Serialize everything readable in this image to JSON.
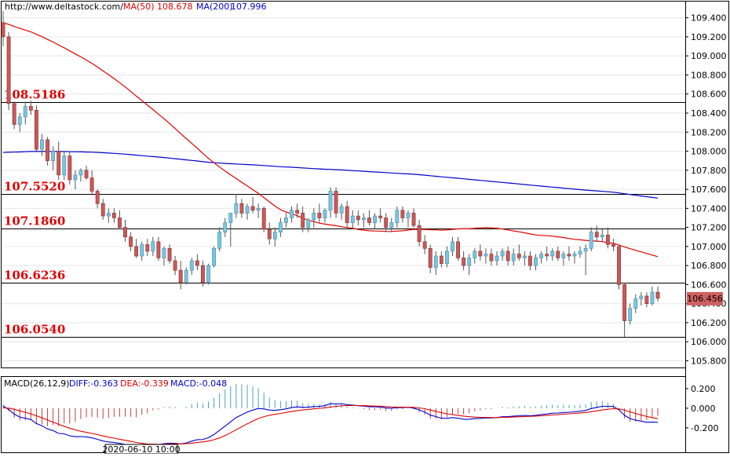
{
  "colors": {
    "ma50": "#e00000",
    "ma200": "#0000cc",
    "bull": "#7ec4dc",
    "bear": "#c85a5a",
    "level": "#e00000",
    "price_tag": "#d06060"
  },
  "header": {
    "site": "http://www.deltastock.com/",
    "ma50_label": "MA(50)",
    "ma50_value": "108.678",
    "ma200_label": "MA(200)",
    "ma200_value": "107.996"
  },
  "chart_data": [
    {
      "type": "candlestick",
      "yticks": [
        "109.400",
        "109.200",
        "109.000",
        "108.800",
        "108.600",
        "108.400",
        "108.200",
        "108.000",
        "107.800",
        "107.600",
        "107.400",
        "107.200",
        "107.000",
        "106.800",
        "106.600",
        "106.400",
        "106.200",
        "106.000",
        "105.800"
      ],
      "ylim": [
        105.73,
        109.57
      ],
      "levels": [
        {
          "label": "108.5186",
          "value": 108.5186
        },
        {
          "label": "107.5520",
          "value": 107.552
        },
        {
          "label": "107.1860",
          "value": 107.186
        },
        {
          "label": "106.6236",
          "value": 106.6236
        },
        {
          "label": "106.0540",
          "value": 106.054
        }
      ],
      "current_price": {
        "label": "106.456",
        "value": 106.456
      },
      "candles": [
        [
          109.35,
          109.47,
          109.1,
          109.2
        ],
        [
          109.2,
          109.25,
          108.43,
          108.5
        ],
        [
          108.5,
          108.52,
          108.23,
          108.28
        ],
        [
          108.28,
          108.4,
          108.2,
          108.36
        ],
        [
          108.36,
          108.52,
          108.28,
          108.47
        ],
        [
          108.47,
          108.53,
          108.38,
          108.43
        ],
        [
          108.43,
          108.48,
          108.0,
          108.02
        ],
        [
          108.02,
          108.18,
          107.95,
          108.12
        ],
        [
          108.12,
          108.15,
          107.85,
          107.9
        ],
        [
          107.9,
          108.05,
          107.8,
          108.0
        ],
        [
          108.0,
          108.1,
          107.7,
          107.75
        ],
        [
          107.75,
          108.0,
          107.7,
          107.95
        ],
        [
          107.95,
          108.0,
          107.65,
          107.7
        ],
        [
          107.7,
          107.8,
          107.6,
          107.75
        ],
        [
          107.75,
          107.82,
          107.68,
          107.8
        ],
        [
          107.8,
          107.85,
          107.7,
          107.72
        ],
        [
          107.72,
          107.8,
          107.55,
          107.58
        ],
        [
          107.58,
          107.6,
          107.4,
          107.45
        ],
        [
          107.45,
          107.5,
          107.28,
          107.32
        ],
        [
          107.32,
          107.4,
          107.25,
          107.35
        ],
        [
          107.35,
          107.4,
          107.25,
          107.3
        ],
        [
          107.3,
          107.38,
          107.18,
          107.2
        ],
        [
          107.2,
          107.28,
          107.05,
          107.1
        ],
        [
          107.1,
          107.15,
          106.95,
          107.0
        ],
        [
          107.0,
          107.08,
          106.88,
          106.9
        ],
        [
          106.9,
          107.05,
          106.85,
          107.02
        ],
        [
          107.02,
          107.08,
          106.9,
          106.95
        ],
        [
          106.95,
          107.1,
          106.9,
          107.05
        ],
        [
          107.05,
          107.1,
          106.85,
          106.88
        ],
        [
          106.88,
          107.0,
          106.8,
          106.98
        ],
        [
          106.98,
          107.02,
          106.82,
          106.85
        ],
        [
          106.85,
          106.9,
          106.7,
          106.75
        ],
        [
          106.75,
          106.85,
          106.55,
          106.62
        ],
        [
          106.62,
          106.78,
          106.6,
          106.75
        ],
        [
          106.75,
          106.88,
          106.7,
          106.85
        ],
        [
          106.85,
          106.92,
          106.75,
          106.8
        ],
        [
          106.8,
          106.85,
          106.58,
          106.62
        ],
        [
          106.62,
          106.82,
          106.6,
          106.8
        ],
        [
          106.8,
          107.0,
          106.78,
          106.98
        ],
        [
          106.98,
          107.2,
          106.95,
          107.15
        ],
        [
          107.15,
          107.3,
          107.1,
          107.25
        ],
        [
          107.25,
          107.35,
          107.0,
          107.35
        ],
        [
          107.35,
          107.55,
          107.3,
          107.45
        ],
        [
          107.45,
          107.5,
          107.3,
          107.35
        ],
        [
          107.35,
          107.45,
          107.28,
          107.42
        ],
        [
          107.42,
          107.52,
          107.35,
          107.38
        ],
        [
          107.38,
          107.45,
          107.3,
          107.4
        ],
        [
          107.4,
          107.42,
          107.15,
          107.18
        ],
        [
          107.18,
          107.25,
          107.02,
          107.08
        ],
        [
          107.08,
          107.2,
          107.0,
          107.15
        ],
        [
          107.15,
          107.3,
          107.1,
          107.25
        ],
        [
          107.25,
          107.35,
          107.2,
          107.3
        ],
        [
          107.3,
          107.42,
          107.25,
          107.38
        ],
        [
          107.38,
          107.45,
          107.3,
          107.35
        ],
        [
          107.35,
          107.42,
          107.15,
          107.2
        ],
        [
          107.2,
          107.3,
          107.15,
          107.28
        ],
        [
          107.28,
          107.4,
          107.2,
          107.35
        ],
        [
          107.35,
          107.45,
          107.25,
          107.3
        ],
        [
          107.3,
          107.4,
          107.25,
          107.38
        ],
        [
          107.38,
          107.62,
          107.3,
          107.58
        ],
        [
          107.58,
          107.62,
          107.3,
          107.35
        ],
        [
          107.35,
          107.45,
          107.28,
          107.42
        ],
        [
          107.42,
          107.48,
          107.2,
          107.25
        ],
        [
          107.25,
          107.38,
          107.18,
          107.32
        ],
        [
          107.32,
          107.38,
          107.22,
          107.28
        ],
        [
          107.28,
          107.35,
          107.2,
          107.3
        ],
        [
          107.3,
          107.38,
          107.22,
          107.25
        ],
        [
          107.25,
          107.35,
          107.18,
          107.32
        ],
        [
          107.32,
          107.4,
          107.25,
          107.3
        ],
        [
          107.3,
          107.35,
          107.15,
          107.2
        ],
        [
          107.2,
          107.3,
          107.15,
          107.25
        ],
        [
          107.25,
          107.42,
          107.2,
          107.38
        ],
        [
          107.38,
          107.42,
          107.25,
          107.3
        ],
        [
          107.3,
          107.38,
          107.2,
          107.35
        ],
        [
          107.35,
          107.4,
          107.2,
          107.22
        ],
        [
          107.22,
          107.28,
          107.0,
          107.05
        ],
        [
          107.05,
          107.12,
          106.92,
          106.98
        ],
        [
          106.98,
          107.02,
          106.72,
          106.78
        ],
        [
          106.78,
          106.95,
          106.7,
          106.9
        ],
        [
          106.9,
          106.95,
          106.78,
          106.82
        ],
        [
          106.82,
          107.0,
          106.78,
          106.95
        ],
        [
          106.95,
          107.1,
          106.9,
          107.05
        ],
        [
          107.05,
          107.1,
          106.85,
          106.88
        ],
        [
          106.88,
          106.95,
          106.75,
          106.8
        ],
        [
          106.8,
          106.92,
          106.7,
          106.88
        ],
        [
          106.88,
          106.98,
          106.82,
          106.95
        ],
        [
          106.95,
          107.02,
          106.85,
          106.9
        ],
        [
          106.9,
          106.98,
          106.82,
          106.92
        ],
        [
          106.92,
          106.98,
          106.8,
          106.85
        ],
        [
          106.85,
          106.95,
          106.8,
          106.9
        ],
        [
          106.9,
          106.98,
          106.85,
          106.95
        ],
        [
          106.95,
          107.0,
          106.8,
          106.85
        ],
        [
          106.85,
          106.98,
          106.8,
          106.92
        ],
        [
          106.92,
          107.02,
          106.85,
          106.88
        ],
        [
          106.88,
          106.95,
          106.8,
          106.9
        ],
        [
          106.9,
          106.95,
          106.75,
          106.8
        ],
        [
          106.8,
          106.92,
          106.75,
          106.88
        ],
        [
          106.88,
          106.95,
          106.82,
          106.92
        ],
        [
          106.92,
          107.0,
          106.85,
          106.9
        ],
        [
          106.9,
          106.98,
          106.85,
          106.95
        ],
        [
          106.95,
          107.0,
          106.85,
          106.88
        ],
        [
          106.88,
          106.95,
          106.8,
          106.92
        ],
        [
          106.92,
          107.0,
          106.85,
          106.9
        ],
        [
          106.9,
          106.95,
          106.82,
          106.92
        ],
        [
          106.92,
          107.0,
          106.88,
          106.95
        ],
        [
          106.95,
          107.02,
          106.7,
          106.98
        ],
        [
          106.98,
          107.2,
          106.95,
          107.15
        ],
        [
          107.15,
          107.22,
          107.05,
          107.1
        ],
        [
          107.1,
          107.18,
          107.05,
          107.12
        ],
        [
          107.12,
          107.2,
          106.98,
          107.02
        ],
        [
          107.02,
          107.08,
          106.95,
          107.0
        ],
        [
          107.0,
          107.02,
          106.55,
          106.6
        ],
        [
          106.6,
          106.62,
          106.05,
          106.22
        ],
        [
          106.22,
          106.4,
          106.18,
          106.35
        ],
        [
          106.35,
          106.5,
          106.3,
          106.45
        ],
        [
          106.45,
          106.52,
          106.38,
          106.48
        ],
        [
          106.48,
          106.52,
          106.36,
          106.4
        ],
        [
          106.4,
          106.58,
          106.38,
          106.52
        ],
        [
          106.52,
          106.58,
          106.42,
          106.456
        ]
      ]
    },
    {
      "type": "macd",
      "title": "MACD(26,12,9)",
      "diff_label": "DIFF:-0.363",
      "dea_label": "DEA:-0.339",
      "macd_label": "MACD:-0.048",
      "yticks": [
        "0.200",
        "0.000",
        "-0.200"
      ],
      "ylim": [
        -0.45,
        0.32
      ],
      "date_label": "2020-06-10 10:00"
    }
  ]
}
